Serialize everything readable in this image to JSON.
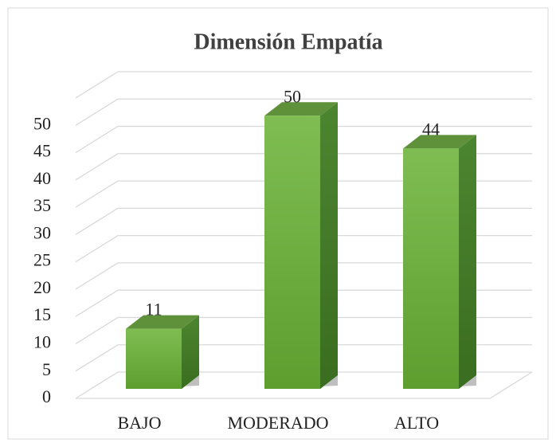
{
  "chart_data": {
    "type": "bar",
    "title": "Dimensión Empatía",
    "categories": [
      "BAJO",
      "MODERADO",
      "ALTO"
    ],
    "values": [
      11,
      50,
      44
    ],
    "color": "#6aab3c",
    "ylim": [
      0,
      55
    ],
    "yticks": [
      0,
      5,
      10,
      15,
      20,
      25,
      30,
      35,
      40,
      45,
      50
    ],
    "grid": true
  }
}
